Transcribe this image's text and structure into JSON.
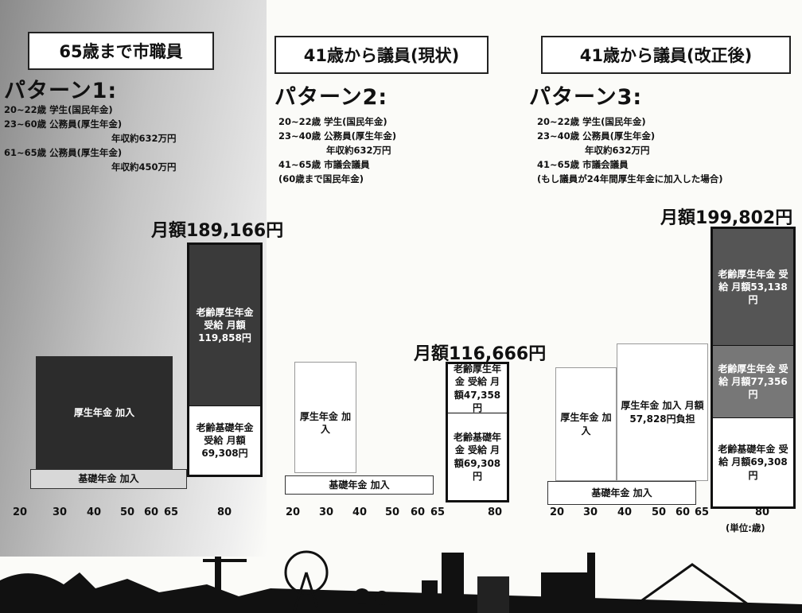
{
  "panels": [
    {
      "header": "65歳まで市職員",
      "pattern": "パターン1:",
      "lines": [
        "20~22歳 学生(国民年金)",
        "23~60歳 公務員(厚生年金)",
        "年収約632万円",
        "61~65歳 公務員(厚生年金)",
        "年収約450万円"
      ],
      "total": "月額189,166円",
      "boxes": [
        "厚生年金 加入",
        "老齢厚生年金 受給 月額119,858円",
        "老齢基礎年金 受給 月額69,308円",
        "基礎年金 加入"
      ],
      "ticks": [
        "20",
        "30",
        "40",
        "50",
        "60",
        "65",
        "80"
      ]
    },
    {
      "header": "41歳から議員(現状)",
      "pattern": "パターン2:",
      "lines": [
        "20~22歳 学生(国民年金)",
        "23~40歳 公務員(厚生年金)",
        "年収約632万円",
        "41~65歳 市議会議員",
        "(60歳まで国民年金)"
      ],
      "total": "月額116,666円",
      "boxes": [
        "厚生年金 加入",
        "基礎年金 加入",
        "老齢厚生年金 受給 月額47,358円",
        "老齢基礎年金 受給 月額69,308円"
      ],
      "ticks": [
        "20",
        "30",
        "40",
        "50",
        "60",
        "65",
        "80"
      ]
    },
    {
      "header": "41歳から議員(改正後)",
      "pattern": "パターン3:",
      "lines": [
        "20~22歳 学生(国民年金)",
        "23~40歳 公務員(厚生年金)",
        "年収約632万円",
        "41~65歳 市議会議員",
        "(もし議員が24年間厚生年金に加入した場合)"
      ],
      "total": "月額199,802円",
      "boxes": [
        "厚生年金 加入",
        "厚生年金 加入 月額57,828円負担",
        "基礎年金 加入",
        "老齢厚生年金 受給 月額53,138円",
        "老齢厚生年金 受給 月額77,356円",
        "老齢基礎年金 受給 月額69,308円"
      ],
      "ticks": [
        "20",
        "30",
        "40",
        "50",
        "60",
        "65",
        "80"
      ]
    }
  ],
  "unit": "(単位:歳)"
}
